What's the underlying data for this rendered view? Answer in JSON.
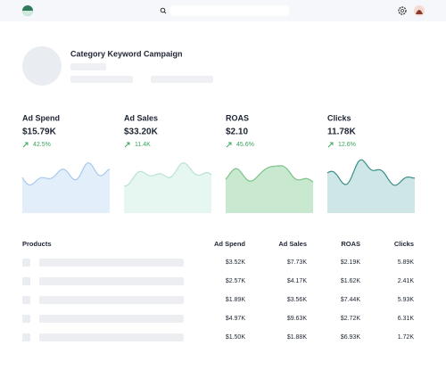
{
  "campaign": {
    "title": "Category Keyword Campaign"
  },
  "metrics": [
    {
      "label": "Ad Spend",
      "value": "$15.79K",
      "change": "42.5%"
    },
    {
      "label": "Ad Sales",
      "value": "$33.20K",
      "change": "11.4K"
    },
    {
      "label": "ROAS",
      "value": "$2.10",
      "change": "45.6%"
    },
    {
      "label": "Clicks",
      "value": "11.78K",
      "change": "12.6%"
    }
  ],
  "table": {
    "columns": [
      "Products",
      "Ad Spend",
      "Ad Sales",
      "ROAS",
      "Clicks"
    ],
    "rows": [
      [
        "$3.52K",
        "$7.73K",
        "$2.19K",
        "5.89K"
      ],
      [
        "$2.57K",
        "$4.17K",
        "$1.62K",
        "2.41K"
      ],
      [
        "$1.89K",
        "$3.56K",
        "$7.44K",
        "5.93K"
      ],
      [
        "$4.97K",
        "$9.63K",
        "$2.72K",
        "6.31K"
      ],
      [
        "$1.50K",
        "$1.88K",
        "$6.93K",
        "1.72K"
      ]
    ]
  }
}
